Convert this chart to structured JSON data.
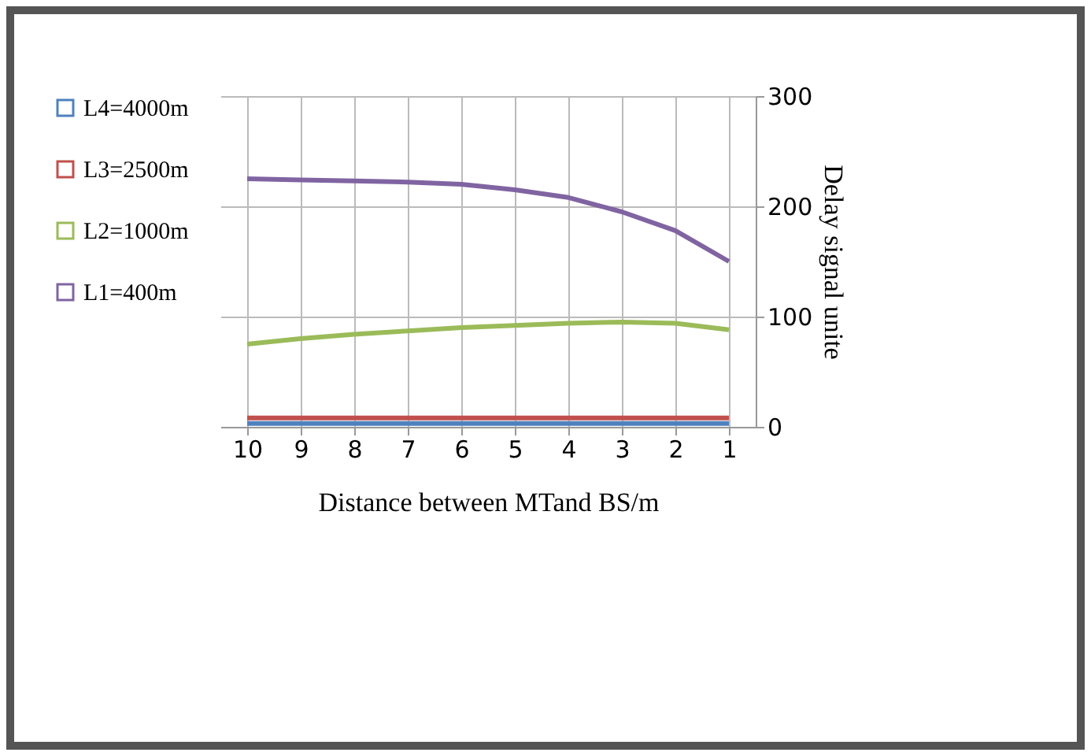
{
  "chart_data": {
    "type": "line",
    "xlabel": "Distance between MTand BS/m",
    "ylabel": "Delay signal unite",
    "categories": [
      "10",
      "9",
      "8",
      "7",
      "6",
      "5",
      "4",
      "3",
      "2",
      "1"
    ],
    "series": [
      {
        "name": "L4=4000m",
        "color": "#4f81bd",
        "values": [
          3,
          3,
          3,
          3,
          3,
          3,
          3,
          3,
          3,
          3
        ]
      },
      {
        "name": "L3=2500m",
        "color": "#c0504d",
        "values": [
          8,
          8,
          8,
          8,
          8,
          8,
          8,
          8,
          8,
          8
        ]
      },
      {
        "name": "L2=1000m",
        "color": "#9bbb59",
        "values": [
          75,
          80,
          84,
          87,
          90,
          92,
          94,
          95,
          94,
          88
        ]
      },
      {
        "name": "L1=400m",
        "color": "#8064a2",
        "values": [
          225,
          224,
          223,
          222,
          220,
          215,
          208,
          195,
          178,
          150
        ]
      }
    ],
    "ylim": [
      0,
      300
    ],
    "yticks": [
      0,
      100,
      200,
      300
    ],
    "grid": true,
    "legend": "left"
  }
}
